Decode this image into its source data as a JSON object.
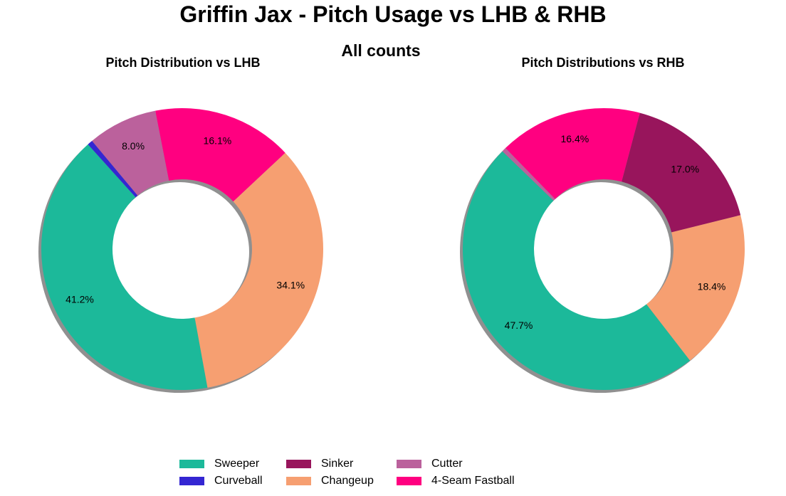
{
  "title": "Griffin Jax - Pitch Usage vs LHB & RHB",
  "subtitle": "All counts",
  "colors": {
    "Sweeper": "#1cb99a",
    "Curveball": "#3426d2",
    "Sinker": "#98155c",
    "Changeup": "#f69f71",
    "Cutter": "#bb619c",
    "4-Seam Fastball": "#ff0080"
  },
  "legend": [
    "Sweeper",
    "Curveball",
    "Sinker",
    "Changeup",
    "Cutter",
    "4-Seam Fastball"
  ],
  "chart_data": [
    {
      "type": "pie",
      "title": "Pitch Distribution vs LHB",
      "slices": [
        {
          "label": "Sweeper",
          "value": 41.2,
          "pct_label": "41.2%"
        },
        {
          "label": "Changeup",
          "value": 34.1,
          "pct_label": "34.1%"
        },
        {
          "label": "4-Seam Fastball",
          "value": 16.1,
          "pct_label": "16.1%"
        },
        {
          "label": "Cutter",
          "value": 8.0,
          "pct_label": "8.0%"
        },
        {
          "label": "Curveball",
          "value": 0.6,
          "pct_label": ""
        }
      ]
    },
    {
      "type": "pie",
      "title": "Pitch Distributions vs RHB",
      "slices": [
        {
          "label": "Sweeper",
          "value": 47.7,
          "pct_label": "47.7%"
        },
        {
          "label": "Changeup",
          "value": 18.4,
          "pct_label": "18.4%"
        },
        {
          "label": "Sinker",
          "value": 17.0,
          "pct_label": "17.0%"
        },
        {
          "label": "4-Seam Fastball",
          "value": 16.4,
          "pct_label": "16.4%"
        },
        {
          "label": "Cutter",
          "value": 0.5,
          "pct_label": ""
        }
      ]
    }
  ]
}
